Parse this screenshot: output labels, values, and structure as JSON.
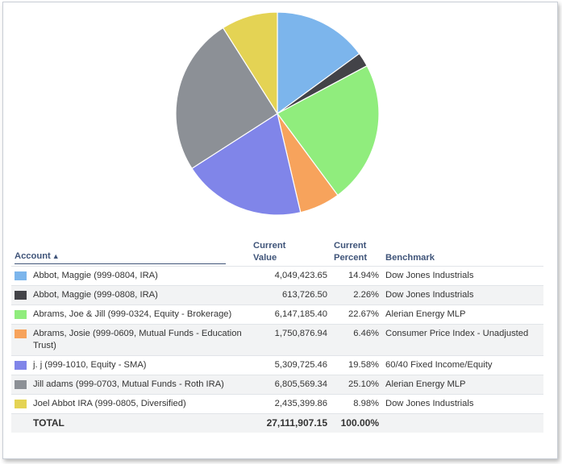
{
  "chart_data": {
    "type": "pie",
    "categories": [
      "Abbot, Maggie (999-0804, IRA)",
      "Abbot, Maggie (999-0808, IRA)",
      "Abrams, Joe & Jill (999-0324, Equity - Brokerage)",
      "Abrams, Josie (999-0609, Mutual Funds - Education Trust)",
      "j. j (999-1010, Equity - SMA)",
      "Jill adams (999-0703, Mutual Funds - Roth IRA)",
      "Joel Abbot IRA (999-0805, Diversified)"
    ],
    "values": [
      14.94,
      2.26,
      22.67,
      6.46,
      19.58,
      25.1,
      8.98
    ],
    "colors": [
      "#7cb5ec",
      "#434348",
      "#90ed7d",
      "#f7a35c",
      "#8085e9",
      "#8c9096",
      "#e4d354"
    ],
    "title": "",
    "legend": "none"
  },
  "table": {
    "headers": {
      "account": "Account",
      "sort_icon": "▲",
      "current_value_line1": "Current",
      "current_value_line2": "Value",
      "current_percent_line1": "Current",
      "current_percent_line2": "Percent",
      "benchmark": "Benchmark"
    },
    "rows": [
      {
        "color": "#7cb5ec",
        "account": "Abbot, Maggie (999-0804, IRA)",
        "value": "4,049,423.65",
        "percent": "14.94%",
        "benchmark": "Dow Jones Industrials"
      },
      {
        "color": "#434348",
        "account": "Abbot, Maggie (999-0808, IRA)",
        "value": "613,726.50",
        "percent": "2.26%",
        "benchmark": "Dow Jones Industrials"
      },
      {
        "color": "#90ed7d",
        "account": "Abrams, Joe & Jill (999-0324, Equity - Brokerage)",
        "value": "6,147,185.40",
        "percent": "22.67%",
        "benchmark": "Alerian Energy MLP"
      },
      {
        "color": "#f7a35c",
        "account": "Abrams, Josie (999-0609, Mutual Funds - Education Trust)",
        "value": "1,750,876.94",
        "percent": "6.46%",
        "benchmark": "Consumer Price Index - Unadjusted"
      },
      {
        "color": "#8085e9",
        "account": "j. j (999-1010, Equity - SMA)",
        "value": "5,309,725.46",
        "percent": "19.58%",
        "benchmark": "60/40 Fixed Income/Equity"
      },
      {
        "color": "#8c9096",
        "account": "Jill adams (999-0703, Mutual Funds - Roth IRA)",
        "value": "6,805,569.34",
        "percent": "25.10%",
        "benchmark": "Alerian Energy MLP"
      },
      {
        "color": "#e4d354",
        "account": "Joel Abbot IRA (999-0805, Diversified)",
        "value": "2,435,399.86",
        "percent": "8.98%",
        "benchmark": "Dow Jones Industrials"
      }
    ],
    "total": {
      "label": "TOTAL",
      "value": "27,111,907.15",
      "percent": "100.00%"
    }
  }
}
